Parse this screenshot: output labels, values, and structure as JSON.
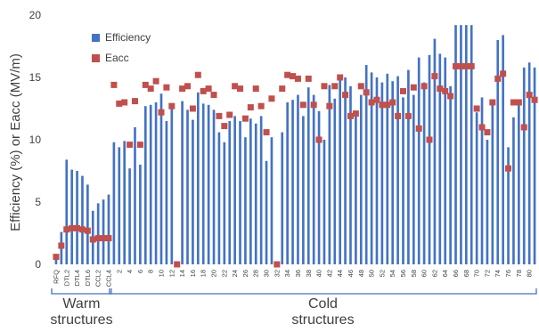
{
  "chart_data": {
    "type": "bar",
    "ylabel": "Efficiency (%) or Eacc (MV/m)",
    "ylim": [
      0,
      20
    ],
    "yticks": [
      0,
      5,
      10,
      15,
      20
    ],
    "grid": false,
    "legend_position": "top-left",
    "categories": [
      "RFQ",
      "DTL1",
      "DTL2",
      "DTL3",
      "DTL4",
      "DTL5",
      "DTL6",
      "CCL1",
      "CCL2",
      "CCL3",
      "CCL4",
      "1",
      "2",
      "3",
      "4",
      "5",
      "6",
      "7",
      "8",
      "9",
      "10",
      "11",
      "12",
      "13",
      "14",
      "15",
      "16",
      "17",
      "18",
      "19",
      "20",
      "21",
      "22",
      "23",
      "24",
      "25",
      "26",
      "27",
      "28",
      "29",
      "30",
      "31",
      "32",
      "33",
      "34",
      "35",
      "36",
      "37",
      "38",
      "39",
      "40",
      "41",
      "42",
      "43",
      "44",
      "45",
      "46",
      "47",
      "48",
      "49",
      "50",
      "51",
      "52",
      "53",
      "54",
      "55",
      "56",
      "57",
      "58",
      "59",
      "60",
      "61",
      "62",
      "63",
      "64",
      "65",
      "66",
      "67",
      "68",
      "69",
      "70",
      "71",
      "72",
      "73",
      "74",
      "75",
      "76",
      "77",
      "78",
      "79",
      "80",
      "81"
    ],
    "tick_labels": [
      "RFQ",
      "DTL2",
      "DTL4",
      "DTL6",
      "CCL2",
      "CCL4",
      "2",
      "4",
      "6",
      "8",
      "10",
      "12",
      "14",
      "16",
      "18",
      "20",
      "22",
      "24",
      "26",
      "28",
      "30",
      "32",
      "34",
      "36",
      "38",
      "40",
      "42",
      "44",
      "46",
      "48",
      "50",
      "52",
      "54",
      "56",
      "58",
      "60",
      "62",
      "64",
      "66",
      "68",
      "70",
      "72",
      "74",
      "76",
      "78",
      "80"
    ],
    "series": [
      {
        "name": "Efficiency",
        "color": "#4472c4",
        "values": [
          0.7,
          2.6,
          8.4,
          7.6,
          7.5,
          7.1,
          6.4,
          4.3,
          4.9,
          5.2,
          5.6,
          9.8,
          9.4,
          9.9,
          7.7,
          11.0,
          8.0,
          12.7,
          12.8,
          13.0,
          13.7,
          11.5,
          12.6,
          0.0,
          13.1,
          12.4,
          11.6,
          13.8,
          12.9,
          12.8,
          12.4,
          10.6,
          9.8,
          11.5,
          11.9,
          11.5,
          10.2,
          11.7,
          11.3,
          11.9,
          8.3,
          10.2,
          0.0,
          10.6,
          13.0,
          13.2,
          13.6,
          11.9,
          14.2,
          13.6,
          12.3,
          10.0,
          14.4,
          13.3,
          15.0,
          15.0,
          14.3,
          12.2,
          13.6,
          16.0,
          15.4,
          15.0,
          14.6,
          15.3,
          14.7,
          15.1,
          13.4,
          15.6,
          13.6,
          16.6,
          14.6,
          16.8,
          18.1,
          16.9,
          16.6,
          14.3,
          19.2,
          19.2,
          19.2,
          19.2,
          12.2,
          13.4,
          10.0,
          12.9,
          18.0,
          18.4,
          9.4,
          11.8,
          13.1,
          15.8,
          16.2,
          15.8
        ]
      },
      {
        "name": "Eacc",
        "color": "#c0504d",
        "values": [
          0.6,
          1.5,
          2.8,
          2.9,
          2.9,
          2.8,
          2.7,
          2.0,
          2.1,
          2.1,
          2.1,
          14.4,
          12.9,
          13.0,
          9.6,
          13.1,
          9.6,
          14.4,
          14.1,
          14.7,
          12.2,
          14.2,
          12.7,
          0.0,
          14.1,
          14.3,
          12.5,
          15.2,
          13.9,
          14.1,
          13.6,
          11.9,
          11.1,
          12.0,
          14.3,
          14.1,
          11.7,
          12.6,
          14.1,
          12.7,
          10.6,
          13.3,
          0.0,
          14.1,
          15.2,
          15.1,
          14.9,
          12.8,
          14.9,
          12.8,
          10.0,
          14.3,
          12.7,
          14.3,
          15.0,
          13.6,
          11.9,
          12.1,
          14.3,
          13.8,
          13.0,
          13.2,
          12.8,
          12.8,
          13.0,
          11.9,
          13.9,
          11.9,
          14.2,
          10.9,
          14.3,
          10.0,
          15.1,
          14.1,
          13.9,
          13.5,
          15.9,
          15.9,
          15.9,
          15.9,
          12.5,
          11.0,
          10.6,
          13.0,
          14.9,
          15.3,
          7.7,
          13.0,
          13.0,
          11.0,
          13.6,
          13.2
        ]
      }
    ],
    "groups": [
      {
        "label": [
          "Warm",
          "structures"
        ],
        "from": 0,
        "to": 10
      },
      {
        "label": [
          "Cold",
          "structures"
        ],
        "from": 11,
        "to": 91
      }
    ]
  }
}
